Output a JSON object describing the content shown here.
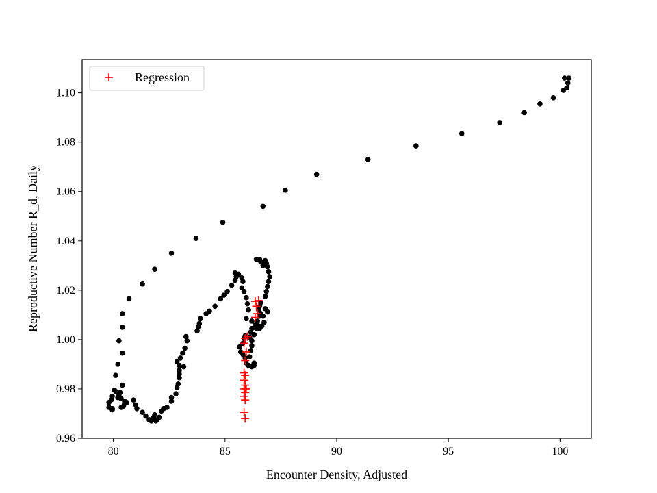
{
  "chart_data": {
    "type": "scatter",
    "title": "",
    "xlabel": "Encounter Density, Adjusted",
    "ylabel": "Reproductive Number R_d, Daily",
    "xlim": [
      78.6,
      101.4
    ],
    "ylim": [
      0.96,
      1.1135
    ],
    "xticks": [
      80,
      85,
      90,
      95,
      100
    ],
    "xtick_labels": [
      "80",
      "85",
      "90",
      "95",
      "100"
    ],
    "yticks": [
      0.96,
      0.98,
      1.0,
      1.02,
      1.04,
      1.06,
      1.08,
      1.1
    ],
    "ytick_labels": [
      "0.96",
      "0.98",
      "1.00",
      "1.02",
      "1.04",
      "1.06",
      "1.08",
      "1.10"
    ],
    "grid": false,
    "legend": {
      "position": "top-left",
      "entries": [
        "Regression"
      ]
    },
    "series": [
      {
        "color": "#000000",
        "marker": "circle",
        "points": [
          [
            100.4,
            1.106
          ],
          [
            100.2,
            1.106
          ],
          [
            100.35,
            1.104
          ],
          [
            100.3,
            1.102
          ],
          [
            100.15,
            1.101
          ],
          [
            99.7,
            1.098
          ],
          [
            99.1,
            1.0955
          ],
          [
            98.4,
            1.092
          ],
          [
            97.3,
            1.088
          ],
          [
            95.6,
            1.0835
          ],
          [
            93.55,
            1.0785
          ],
          [
            91.4,
            1.073
          ],
          [
            89.1,
            1.067
          ],
          [
            87.7,
            1.0605
          ],
          [
            86.7,
            1.054
          ],
          [
            84.9,
            1.0475
          ],
          [
            83.7,
            1.041
          ],
          [
            82.6,
            1.035
          ],
          [
            81.85,
            1.0285
          ],
          [
            81.3,
            1.0225
          ],
          [
            80.7,
            1.0165
          ],
          [
            80.4,
            1.0105
          ],
          [
            80.4,
            1.005
          ],
          [
            80.25,
            0.9995
          ],
          [
            80.4,
            0.9945
          ],
          [
            80.2,
            0.99
          ],
          [
            80.1,
            0.9855
          ],
          [
            80.4,
            0.9815
          ],
          [
            80.1,
            0.979
          ],
          [
            80.25,
            0.9775
          ],
          [
            79.95,
            0.977
          ],
          [
            80.05,
            0.9795
          ],
          [
            80.3,
            0.9785
          ],
          [
            80.2,
            0.9765
          ],
          [
            80.35,
            0.976
          ],
          [
            80.5,
            0.975
          ],
          [
            79.9,
            0.9755
          ],
          [
            79.8,
            0.9745
          ],
          [
            80.5,
            0.974
          ],
          [
            80.6,
            0.9745
          ],
          [
            79.8,
            0.9725
          ],
          [
            79.95,
            0.972
          ],
          [
            79.95,
            0.9715
          ],
          [
            80.35,
            0.9725
          ],
          [
            80.45,
            0.973
          ],
          [
            80.9,
            0.9755
          ],
          [
            81.0,
            0.9735
          ],
          [
            81.05,
            0.972
          ],
          [
            81.3,
            0.9705
          ],
          [
            81.45,
            0.969
          ],
          [
            81.6,
            0.9675
          ],
          [
            81.7,
            0.967
          ],
          [
            81.8,
            0.9685
          ],
          [
            81.85,
            0.9695
          ],
          [
            81.9,
            0.967
          ],
          [
            81.95,
            0.9675
          ],
          [
            82.05,
            0.9685
          ],
          [
            82.15,
            0.971
          ],
          [
            82.25,
            0.972
          ],
          [
            82.4,
            0.9725
          ],
          [
            82.6,
            0.975
          ],
          [
            82.6,
            0.9765
          ],
          [
            82.8,
            0.978
          ],
          [
            82.85,
            0.9805
          ],
          [
            82.9,
            0.982
          ],
          [
            82.95,
            0.9845
          ],
          [
            82.95,
            0.986
          ],
          [
            82.95,
            0.9875
          ],
          [
            82.95,
            0.9895
          ],
          [
            82.85,
            0.991
          ],
          [
            83.0,
            0.9925
          ],
          [
            83.15,
            0.989
          ],
          [
            83.1,
            0.9945
          ],
          [
            83.2,
            0.9965
          ],
          [
            83.3,
            0.9995
          ],
          [
            83.25,
            1.0012
          ],
          [
            83.75,
            1.0035
          ],
          [
            83.8,
            1.0052
          ],
          [
            83.85,
            1.0065
          ],
          [
            83.9,
            1.0085
          ],
          [
            84.15,
            1.0105
          ],
          [
            84.3,
            1.0115
          ],
          [
            84.55,
            1.0135
          ],
          [
            84.8,
            1.0165
          ],
          [
            84.95,
            1.018
          ],
          [
            85.1,
            1.0195
          ],
          [
            85.3,
            1.022
          ],
          [
            85.45,
            1.024
          ],
          [
            85.5,
            1.0255
          ],
          [
            85.45,
            1.027
          ],
          [
            85.6,
            1.0265
          ],
          [
            85.75,
            1.025
          ],
          [
            85.8,
            1.0235
          ],
          [
            85.75,
            1.021
          ],
          [
            85.85,
            1.0195
          ],
          [
            85.95,
            1.017
          ],
          [
            86.0,
            1.0145
          ],
          [
            86.05,
            1.012
          ],
          [
            85.95,
            1.0085
          ],
          [
            86.2,
            1.0075
          ],
          [
            86.35,
            1.006
          ],
          [
            86.2,
            1.0045
          ],
          [
            86.15,
            1.003
          ],
          [
            86.1,
            1.001
          ],
          [
            85.9,
            1.0015
          ],
          [
            85.85,
            1.0005
          ],
          [
            85.8,
            0.9985
          ],
          [
            85.65,
            0.997
          ],
          [
            85.7,
            0.995
          ],
          [
            85.8,
            0.994
          ],
          [
            85.9,
            0.9925
          ],
          [
            85.95,
            0.9905
          ],
          [
            86.05,
            0.9895
          ],
          [
            86.3,
            0.9895
          ],
          [
            86.2,
            0.989
          ],
          [
            86.3,
            0.9905
          ],
          [
            86.1,
            0.993
          ],
          [
            86.15,
            0.9955
          ],
          [
            86.2,
            0.9975
          ],
          [
            86.2,
            0.9995
          ],
          [
            86.3,
            1.002
          ],
          [
            86.4,
            1.0045
          ],
          [
            86.5,
            1.0055
          ],
          [
            86.45,
            1.0075
          ],
          [
            86.55,
            1.0095
          ],
          [
            86.6,
            1.0105
          ],
          [
            86.5,
            1.012
          ],
          [
            86.55,
            1.0135
          ],
          [
            86.6,
            1.015
          ],
          [
            86.8,
            1.0125
          ],
          [
            86.9,
            1.0112
          ],
          [
            86.7,
            1.0095
          ],
          [
            86.75,
            1.007
          ],
          [
            86.65,
            1.0055
          ],
          [
            86.55,
            1.0045
          ],
          [
            86.8,
            1.0175
          ],
          [
            86.85,
            1.0195
          ],
          [
            86.9,
            1.0215
          ],
          [
            86.95,
            1.0235
          ],
          [
            87.0,
            1.0255
          ],
          [
            86.95,
            1.0275
          ],
          [
            86.9,
            1.0295
          ],
          [
            86.85,
            1.031
          ],
          [
            86.8,
            1.032
          ],
          [
            86.7,
            1.03
          ],
          [
            86.55,
            1.0325
          ],
          [
            86.4,
            1.0325
          ],
          [
            86.6,
            1.0315
          ],
          [
            86.75,
            1.0305
          ]
        ]
      },
      {
        "name": "Regression",
        "color": "#ff0000",
        "marker": "plus",
        "points": [
          [
            85.9,
            0.968
          ],
          [
            85.85,
            0.9705
          ],
          [
            85.9,
            0.9755
          ],
          [
            85.85,
            0.977
          ],
          [
            85.9,
            0.9785
          ],
          [
            85.85,
            0.98
          ],
          [
            85.95,
            0.98
          ],
          [
            85.9,
            0.9815
          ],
          [
            85.85,
            0.9835
          ],
          [
            85.9,
            0.9855
          ],
          [
            85.85,
            0.9865
          ],
          [
            85.9,
            0.9915
          ],
          [
            85.95,
            0.995
          ],
          [
            85.85,
            0.9985
          ],
          [
            85.9,
            1.0005
          ],
          [
            86.0,
            1.0012
          ],
          [
            86.35,
            1.009
          ],
          [
            86.45,
            1.0105
          ],
          [
            86.4,
            1.0135
          ],
          [
            86.35,
            1.0155
          ],
          [
            86.5,
            1.0158
          ]
        ]
      }
    ]
  }
}
